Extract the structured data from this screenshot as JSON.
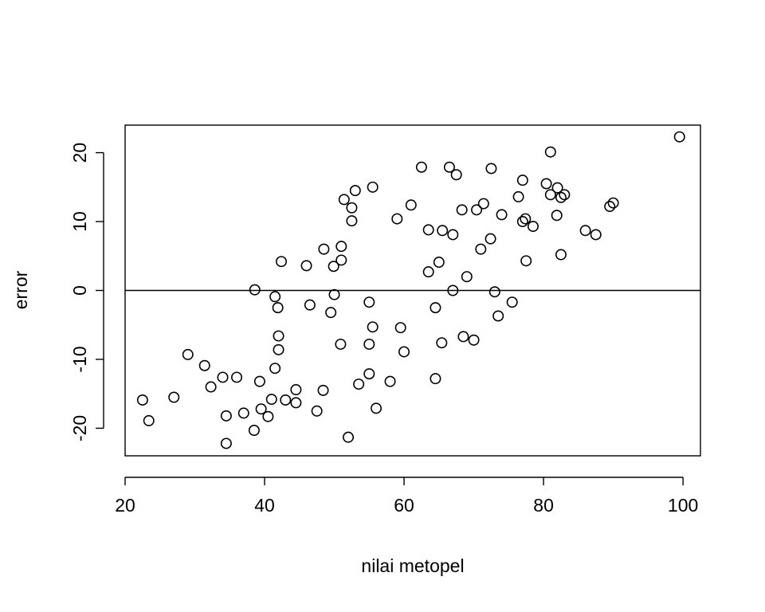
{
  "chart_data": {
    "type": "scatter",
    "title": "",
    "xlabel": "nilai metopel",
    "ylabel": "error",
    "xlim": [
      20.0,
      102.5
    ],
    "ylim": [
      -24,
      24
    ],
    "x_ticks": [
      20,
      40,
      60,
      80,
      100
    ],
    "y_ticks": [
      -20,
      -10,
      0,
      10,
      20
    ],
    "reference_line": {
      "y": 0
    },
    "grid": false,
    "legend": "none",
    "marker": "open-circle",
    "color": "#000000",
    "points": [
      {
        "x": 22.5,
        "y": -15.9
      },
      {
        "x": 23.4,
        "y": -18.9
      },
      {
        "x": 27.0,
        "y": -15.5
      },
      {
        "x": 29.0,
        "y": -9.3
      },
      {
        "x": 31.4,
        "y": -10.9
      },
      {
        "x": 32.3,
        "y": -14.0
      },
      {
        "x": 34.0,
        "y": -12.6
      },
      {
        "x": 34.5,
        "y": -18.2
      },
      {
        "x": 34.5,
        "y": -22.2
      },
      {
        "x": 36.0,
        "y": -12.6
      },
      {
        "x": 37.0,
        "y": -17.8
      },
      {
        "x": 38.5,
        "y": -20.3
      },
      {
        "x": 38.6,
        "y": 0.1
      },
      {
        "x": 39.3,
        "y": -13.2
      },
      {
        "x": 39.5,
        "y": -17.2
      },
      {
        "x": 40.5,
        "y": -18.3
      },
      {
        "x": 41.0,
        "y": -15.8
      },
      {
        "x": 41.5,
        "y": -11.3
      },
      {
        "x": 41.5,
        "y": -0.9
      },
      {
        "x": 41.9,
        "y": -2.5
      },
      {
        "x": 42.0,
        "y": -6.6
      },
      {
        "x": 42.0,
        "y": -8.6
      },
      {
        "x": 42.4,
        "y": 4.2
      },
      {
        "x": 43.0,
        "y": -15.9
      },
      {
        "x": 44.5,
        "y": -14.4
      },
      {
        "x": 44.5,
        "y": -16.3
      },
      {
        "x": 46.0,
        "y": 3.6
      },
      {
        "x": 46.5,
        "y": -2.1
      },
      {
        "x": 47.5,
        "y": -17.5
      },
      {
        "x": 48.4,
        "y": -14.5
      },
      {
        "x": 48.5,
        "y": 6.0
      },
      {
        "x": 49.5,
        "y": -3.2
      },
      {
        "x": 49.9,
        "y": 3.5
      },
      {
        "x": 50.0,
        "y": -0.6
      },
      {
        "x": 50.9,
        "y": -7.8
      },
      {
        "x": 51.0,
        "y": 6.4
      },
      {
        "x": 51.0,
        "y": 4.4
      },
      {
        "x": 51.4,
        "y": 13.2
      },
      {
        "x": 52.0,
        "y": -21.3
      },
      {
        "x": 52.5,
        "y": 12.0
      },
      {
        "x": 52.5,
        "y": 10.1
      },
      {
        "x": 53.0,
        "y": 14.5
      },
      {
        "x": 53.5,
        "y": -13.6
      },
      {
        "x": 55.0,
        "y": -1.7
      },
      {
        "x": 55.0,
        "y": -12.1
      },
      {
        "x": 55.0,
        "y": -7.8
      },
      {
        "x": 55.5,
        "y": -5.3
      },
      {
        "x": 55.5,
        "y": 15.0
      },
      {
        "x": 56.0,
        "y": -17.1
      },
      {
        "x": 58.0,
        "y": -13.2
      },
      {
        "x": 59.0,
        "y": 10.4
      },
      {
        "x": 59.5,
        "y": -5.4
      },
      {
        "x": 60.0,
        "y": -8.9
      },
      {
        "x": 61.0,
        "y": 12.4
      },
      {
        "x": 62.5,
        "y": 17.9
      },
      {
        "x": 63.5,
        "y": 2.7
      },
      {
        "x": 63.5,
        "y": 8.8
      },
      {
        "x": 64.5,
        "y": -2.5
      },
      {
        "x": 64.5,
        "y": -12.8
      },
      {
        "x": 65.0,
        "y": 4.1
      },
      {
        "x": 65.4,
        "y": -7.6
      },
      {
        "x": 65.5,
        "y": 8.7
      },
      {
        "x": 66.5,
        "y": 17.9
      },
      {
        "x": 67.0,
        "y": 0.0
      },
      {
        "x": 67.0,
        "y": 8.1
      },
      {
        "x": 67.5,
        "y": 16.8
      },
      {
        "x": 68.3,
        "y": 11.7
      },
      {
        "x": 68.5,
        "y": -6.7
      },
      {
        "x": 69.0,
        "y": 2.0
      },
      {
        "x": 70.0,
        "y": -7.2
      },
      {
        "x": 70.4,
        "y": 11.7
      },
      {
        "x": 71.0,
        "y": 6.0
      },
      {
        "x": 71.4,
        "y": 12.6
      },
      {
        "x": 72.4,
        "y": 7.5
      },
      {
        "x": 72.5,
        "y": 17.7
      },
      {
        "x": 73.0,
        "y": -0.2
      },
      {
        "x": 73.5,
        "y": -3.7
      },
      {
        "x": 74.0,
        "y": 11.0
      },
      {
        "x": 75.5,
        "y": -1.7
      },
      {
        "x": 76.4,
        "y": 13.6
      },
      {
        "x": 77.0,
        "y": 16.0
      },
      {
        "x": 77.0,
        "y": 10.0
      },
      {
        "x": 77.4,
        "y": 10.4
      },
      {
        "x": 77.5,
        "y": 4.3
      },
      {
        "x": 78.5,
        "y": 9.3
      },
      {
        "x": 80.4,
        "y": 15.5
      },
      {
        "x": 81.0,
        "y": 20.1
      },
      {
        "x": 81.0,
        "y": 13.9
      },
      {
        "x": 81.9,
        "y": 10.9
      },
      {
        "x": 82.0,
        "y": 14.9
      },
      {
        "x": 82.5,
        "y": 13.5
      },
      {
        "x": 82.5,
        "y": 5.2
      },
      {
        "x": 83.0,
        "y": 13.9
      },
      {
        "x": 86.0,
        "y": 8.7
      },
      {
        "x": 87.5,
        "y": 8.1
      },
      {
        "x": 89.5,
        "y": 12.2
      },
      {
        "x": 90.0,
        "y": 12.7
      },
      {
        "x": 99.5,
        "y": 22.3
      }
    ]
  }
}
